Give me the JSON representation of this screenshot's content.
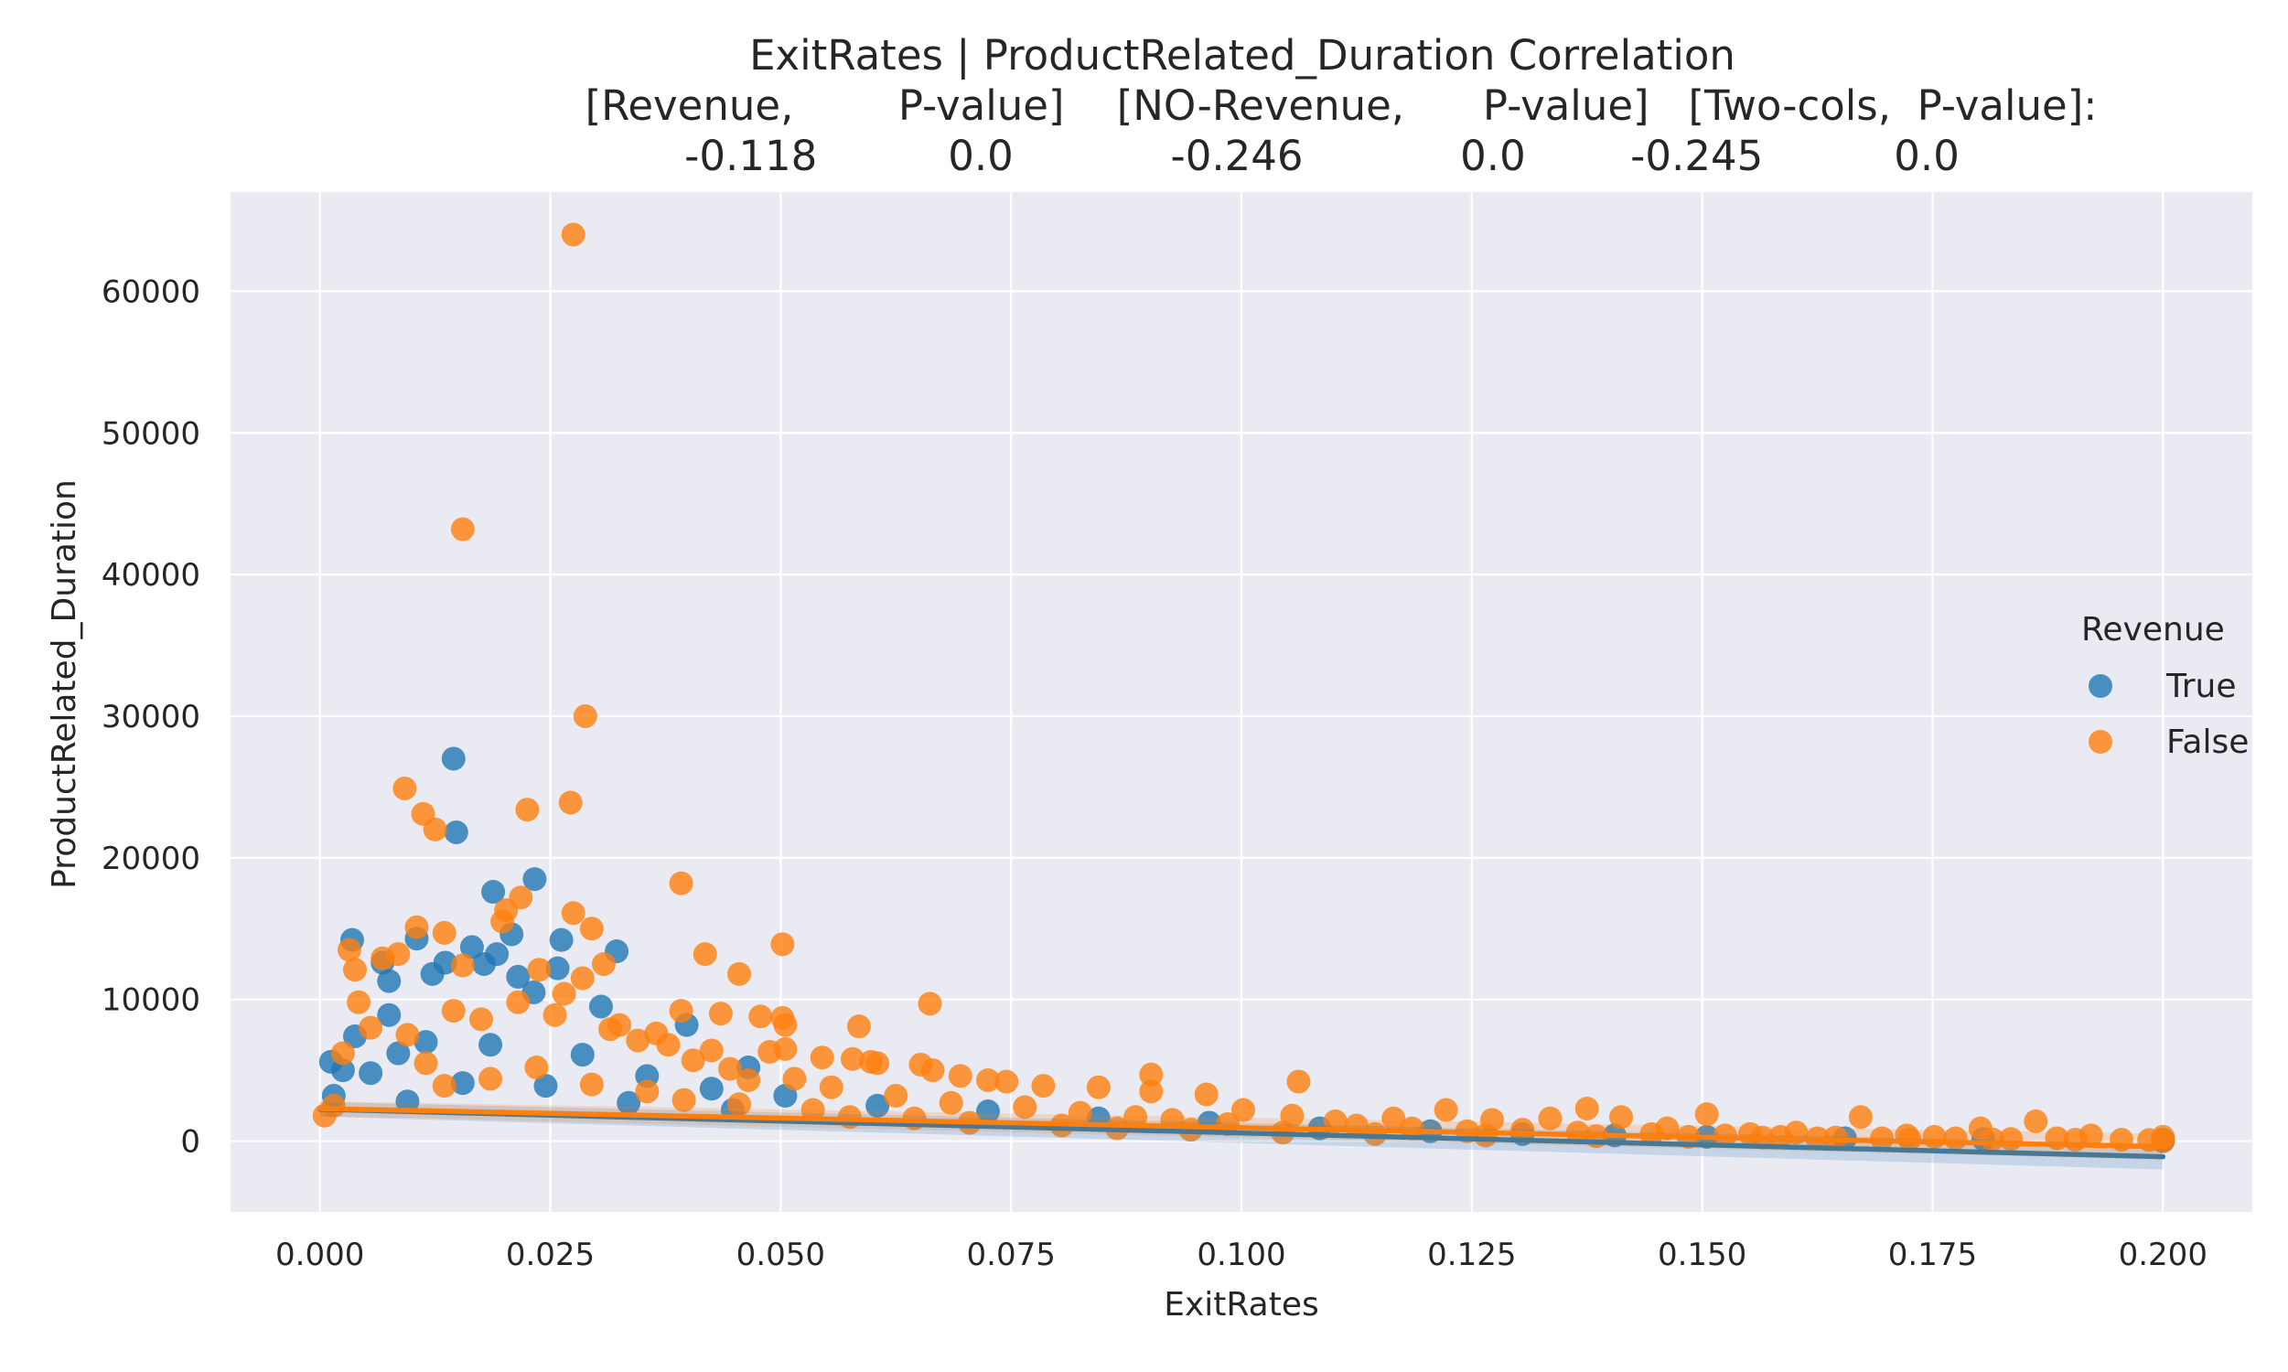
{
  "chart_data": {
    "type": "scatter",
    "title_lines": [
      "ExitRates | ProductRelated_Duration    Correlation",
      "[Revenue,        P-value]    [NO-Revenue,      P-value]   [Two-cols,  P-value]:",
      "-0.118          0.0            -0.246            0.0        -0.245          0.0"
    ],
    "xlabel": "ExitRates",
    "ylabel": "ProductRelated_Duration",
    "xlim": [
      -0.0097,
      0.2097
    ],
    "ylim": [
      -5000,
      67000
    ],
    "xticks": [
      0.0,
      0.025,
      0.05,
      0.075,
      0.1,
      0.125,
      0.15,
      0.175,
      0.2
    ],
    "xtick_labels": [
      "0.000",
      "0.025",
      "0.050",
      "0.075",
      "0.100",
      "0.125",
      "0.150",
      "0.175",
      "0.200"
    ],
    "yticks": [
      0,
      10000,
      20000,
      30000,
      40000,
      50000,
      60000
    ],
    "ytick_labels": [
      "0",
      "10000",
      "20000",
      "30000",
      "40000",
      "50000",
      "60000"
    ],
    "grid": true,
    "legend": {
      "title": "Revenue",
      "placement": "right",
      "entries": [
        "True",
        "False"
      ]
    },
    "series": [
      {
        "name": "True",
        "color": "#1f77b4",
        "points": [
          [
            0.0145,
            27000
          ],
          [
            0.0148,
            21800
          ],
          [
            0.0233,
            18500
          ],
          [
            0.0188,
            17600
          ],
          [
            0.0035,
            14200
          ],
          [
            0.0262,
            14200
          ],
          [
            0.0322,
            13400
          ],
          [
            0.0165,
            13700
          ],
          [
            0.0192,
            13200
          ],
          [
            0.0208,
            14600
          ],
          [
            0.0105,
            14300
          ],
          [
            0.0068,
            12600
          ],
          [
            0.0136,
            12600
          ],
          [
            0.0178,
            12500
          ],
          [
            0.0258,
            12200
          ],
          [
            0.0075,
            11300
          ],
          [
            0.0122,
            11800
          ],
          [
            0.0215,
            11600
          ],
          [
            0.0232,
            10500
          ],
          [
            0.0305,
            9500
          ],
          [
            0.0075,
            8900
          ],
          [
            0.0398,
            8200
          ],
          [
            0.0038,
            7400
          ],
          [
            0.0115,
            7000
          ],
          [
            0.0465,
            5200
          ],
          [
            0.0012,
            5600
          ],
          [
            0.0025,
            5000
          ],
          [
            0.0055,
            4800
          ],
          [
            0.0085,
            6200
          ],
          [
            0.0185,
            6800
          ],
          [
            0.0285,
            6100
          ],
          [
            0.0355,
            4600
          ],
          [
            0.0425,
            3700
          ],
          [
            0.0505,
            3200
          ],
          [
            0.0605,
            2500
          ],
          [
            0.0725,
            2100
          ],
          [
            0.0845,
            1600
          ],
          [
            0.0965,
            1300
          ],
          [
            0.1085,
            900
          ],
          [
            0.1205,
            700
          ],
          [
            0.1305,
            500
          ],
          [
            0.1405,
            400
          ],
          [
            0.1505,
            300
          ],
          [
            0.1655,
            200
          ],
          [
            0.1805,
            150
          ],
          [
            0.2,
            100
          ],
          [
            0.2,
            0
          ],
          [
            0.0015,
            3200
          ],
          [
            0.0095,
            2800
          ],
          [
            0.0155,
            4100
          ],
          [
            0.0245,
            3900
          ],
          [
            0.0335,
            2700
          ],
          [
            0.0448,
            2200
          ]
        ],
        "regression": {
          "x": [
            0.0,
            0.2
          ],
          "y": [
            2250,
            -1100
          ]
        }
      },
      {
        "name": "False",
        "color": "#ff7f0e",
        "points": [
          [
            0.0275,
            64000
          ],
          [
            0.0155,
            43200
          ],
          [
            0.0288,
            30000
          ],
          [
            0.0092,
            24900
          ],
          [
            0.0225,
            23400
          ],
          [
            0.0272,
            23900
          ],
          [
            0.0112,
            23100
          ],
          [
            0.0125,
            22000
          ],
          [
            0.0392,
            18200
          ],
          [
            0.0218,
            17200
          ],
          [
            0.0275,
            16100
          ],
          [
            0.0202,
            16300
          ],
          [
            0.0198,
            15500
          ],
          [
            0.0105,
            15100
          ],
          [
            0.0295,
            15000
          ],
          [
            0.0135,
            14700
          ],
          [
            0.0502,
            13900
          ],
          [
            0.0418,
            13200
          ],
          [
            0.0032,
            13500
          ],
          [
            0.0085,
            13200
          ],
          [
            0.0068,
            12900
          ],
          [
            0.0155,
            12400
          ],
          [
            0.0238,
            12100
          ],
          [
            0.0308,
            12500
          ],
          [
            0.0038,
            12100
          ],
          [
            0.0455,
            11800
          ],
          [
            0.0285,
            11500
          ],
          [
            0.0662,
            9700
          ],
          [
            0.0042,
            9800
          ],
          [
            0.0392,
            9200
          ],
          [
            0.0435,
            9000
          ],
          [
            0.0478,
            8800
          ],
          [
            0.0502,
            8700
          ],
          [
            0.0505,
            8200
          ],
          [
            0.0585,
            8100
          ],
          [
            0.0325,
            8200
          ],
          [
            0.0365,
            7600
          ],
          [
            0.0425,
            6400
          ],
          [
            0.0488,
            6300
          ],
          [
            0.0505,
            6500
          ],
          [
            0.0545,
            5900
          ],
          [
            0.0578,
            5800
          ],
          [
            0.0605,
            5500
          ],
          [
            0.0652,
            5400
          ],
          [
            0.0598,
            5600
          ],
          [
            0.0665,
            5000
          ],
          [
            0.0695,
            4600
          ],
          [
            0.0725,
            4300
          ],
          [
            0.0745,
            4200
          ],
          [
            0.0785,
            3900
          ],
          [
            0.0845,
            3800
          ],
          [
            0.0902,
            4700
          ],
          [
            0.0902,
            3500
          ],
          [
            0.0962,
            3300
          ],
          [
            0.1062,
            4200
          ],
          [
            0.1002,
            2200
          ],
          [
            0.1055,
            1800
          ],
          [
            0.1102,
            1400
          ],
          [
            0.1165,
            1600
          ],
          [
            0.1222,
            2200
          ],
          [
            0.1272,
            1500
          ],
          [
            0.1335,
            1600
          ],
          [
            0.1375,
            2300
          ],
          [
            0.1412,
            1700
          ],
          [
            0.1505,
            1900
          ],
          [
            0.1462,
            900
          ],
          [
            0.1552,
            500
          ],
          [
            0.1602,
            600
          ],
          [
            0.1672,
            1700
          ],
          [
            0.1722,
            400
          ],
          [
            0.1802,
            900
          ],
          [
            0.1862,
            1400
          ],
          [
            0.1922,
            400
          ],
          [
            0.2,
            300
          ],
          [
            0.2,
            0
          ],
          [
            0.1885,
            200
          ],
          [
            0.1752,
            300
          ],
          [
            0.0055,
            8000
          ],
          [
            0.0095,
            7500
          ],
          [
            0.0145,
            9200
          ],
          [
            0.0175,
            8600
          ],
          [
            0.0215,
            9800
          ],
          [
            0.0255,
            8900
          ],
          [
            0.0265,
            10400
          ],
          [
            0.0315,
            7900
          ],
          [
            0.0345,
            7100
          ],
          [
            0.0378,
            6800
          ],
          [
            0.0405,
            5700
          ],
          [
            0.0445,
            5100
          ],
          [
            0.0465,
            4300
          ],
          [
            0.0515,
            4400
          ],
          [
            0.0555,
            3800
          ],
          [
            0.0625,
            3200
          ],
          [
            0.0685,
            2700
          ],
          [
            0.0765,
            2400
          ],
          [
            0.0825,
            2000
          ],
          [
            0.0885,
            1700
          ],
          [
            0.0925,
            1500
          ],
          [
            0.0985,
            1200
          ],
          [
            0.1125,
            1100
          ],
          [
            0.1185,
            900
          ],
          [
            0.1245,
            700
          ],
          [
            0.1305,
            800
          ],
          [
            0.1365,
            600
          ],
          [
            0.1445,
            500
          ],
          [
            0.1525,
            400
          ],
          [
            0.1585,
            300
          ],
          [
            0.1645,
            250
          ],
          [
            0.1695,
            200
          ],
          [
            0.1775,
            200
          ],
          [
            0.1835,
            150
          ],
          [
            0.1955,
            100
          ],
          [
            0.0015,
            2500
          ],
          [
            0.0005,
            1800
          ],
          [
            0.0025,
            6200
          ],
          [
            0.0115,
            5500
          ],
          [
            0.0135,
            3900
          ],
          [
            0.0185,
            4400
          ],
          [
            0.0235,
            5200
          ],
          [
            0.0295,
            4000
          ],
          [
            0.0355,
            3500
          ],
          [
            0.0395,
            2900
          ],
          [
            0.0455,
            2600
          ],
          [
            0.0535,
            2200
          ],
          [
            0.0575,
            1700
          ],
          [
            0.0645,
            1600
          ],
          [
            0.0705,
            1300
          ],
          [
            0.0805,
            1100
          ],
          [
            0.0865,
            900
          ],
          [
            0.0945,
            800
          ],
          [
            0.1045,
            600
          ],
          [
            0.1145,
            500
          ],
          [
            0.1265,
            400
          ],
          [
            0.1385,
            350
          ],
          [
            0.1485,
            300
          ],
          [
            0.1565,
            250
          ],
          [
            0.1625,
            200
          ],
          [
            0.1725,
            150
          ],
          [
            0.1815,
            120
          ],
          [
            0.1905,
            100
          ],
          [
            0.1985,
            80
          ]
        ],
        "regression": {
          "x": [
            0.0,
            0.2
          ],
          "y": [
            2300,
            -400
          ]
        }
      }
    ]
  }
}
